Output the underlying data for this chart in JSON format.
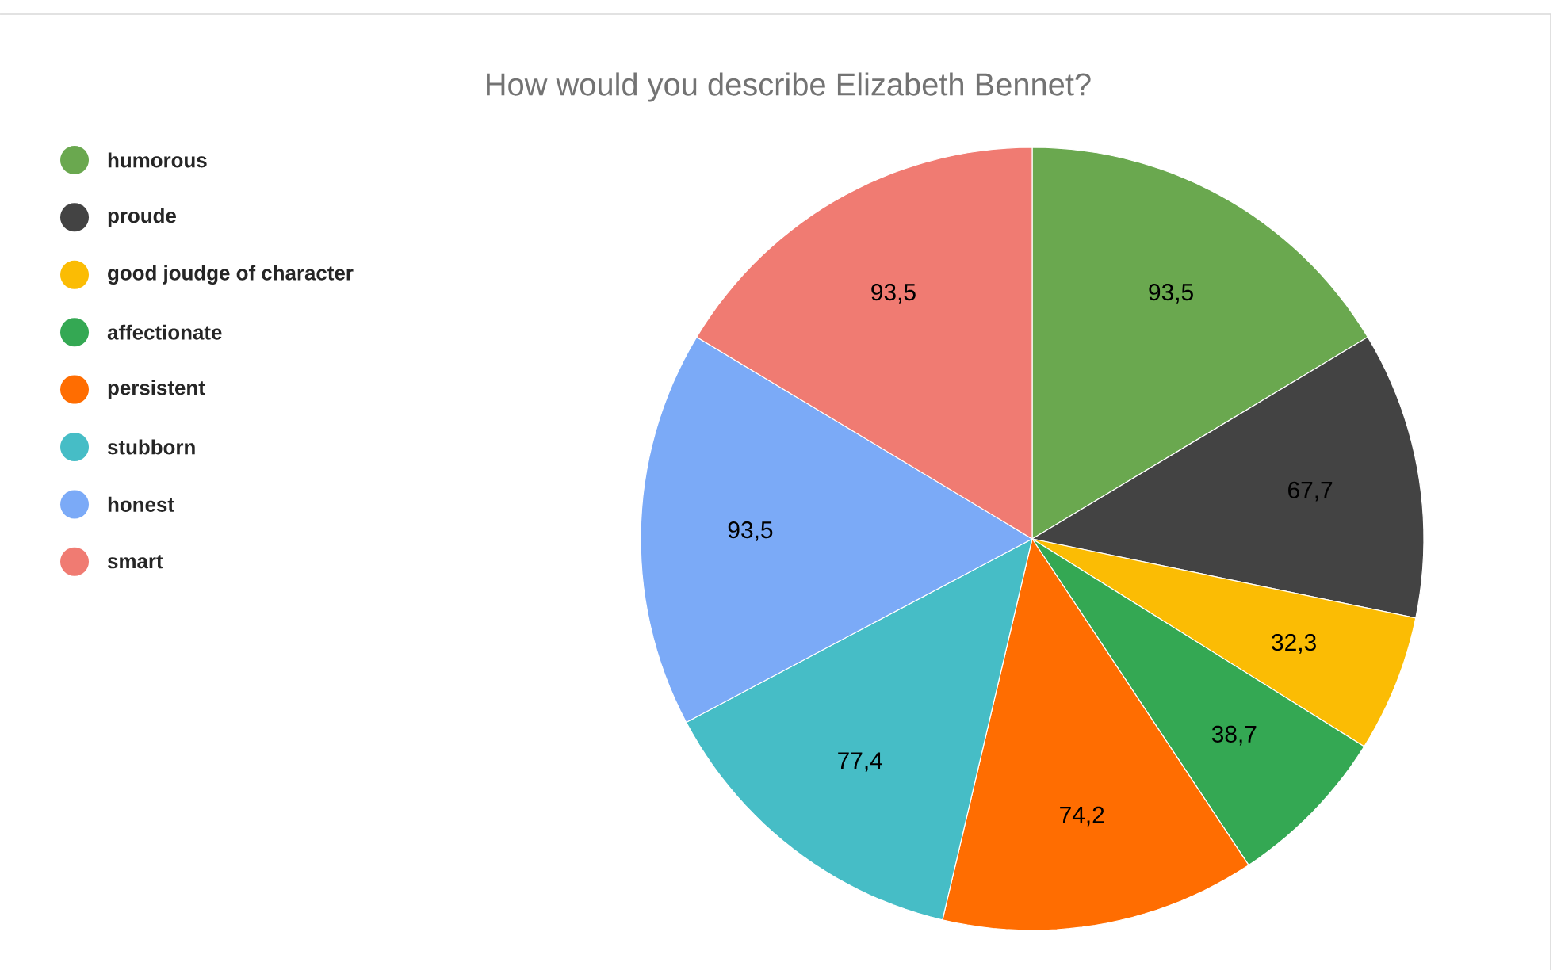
{
  "chart_data": {
    "type": "pie",
    "title": "How would you describe Elizabeth Bennet?",
    "categories": [
      "humorous",
      "proude",
      "good joudge of character",
      "affectionate",
      "persistent",
      "stubborn",
      "honest",
      "smart"
    ],
    "values": [
      93.5,
      67.7,
      32.3,
      38.7,
      74.2,
      77.4,
      93.5,
      93.5
    ],
    "value_labels": [
      "93,5",
      "67,7",
      "32,3",
      "38,7",
      "74,2",
      "77,4",
      "93,5",
      "93,5"
    ],
    "colors": [
      "#6aa84f",
      "#434343",
      "#fbbc04",
      "#34a853",
      "#ff6d01",
      "#46bdc6",
      "#7baaf7",
      "#f07b72"
    ],
    "legend": "left"
  }
}
